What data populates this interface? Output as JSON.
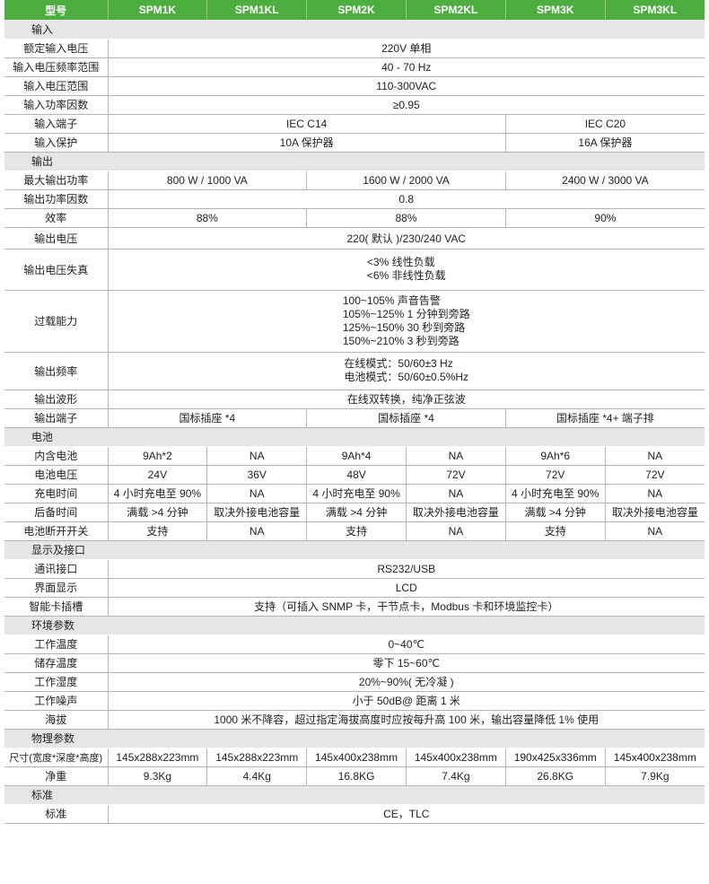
{
  "header": {
    "label": "型号",
    "models": [
      "SPM1K",
      "SPM1KL",
      "SPM2K",
      "SPM2KL",
      "SPM3K",
      "SPM3KL"
    ]
  },
  "accent_color": "#4cae3f",
  "rows": [
    {
      "section": "输入"
    },
    {
      "label": "额定输入电压",
      "cells": [
        {
          "t": "220V 单相",
          "s": 6
        }
      ]
    },
    {
      "label": "输入电压频率范围",
      "cells": [
        {
          "t": "40 - 70 Hz",
          "s": 6
        }
      ]
    },
    {
      "label": "输入电压范围",
      "cells": [
        {
          "t": "110-300VAC",
          "s": 6
        }
      ]
    },
    {
      "label": "输入功率因数",
      "cells": [
        {
          "t": "≥0.95",
          "s": 6
        }
      ]
    },
    {
      "label": "输入端子",
      "cells": [
        {
          "t": "IEC C14",
          "s": 4
        },
        {
          "t": "IEC C20",
          "s": 2
        }
      ]
    },
    {
      "label": "输入保护",
      "cells": [
        {
          "t": "10A 保护器",
          "s": 4
        },
        {
          "t": "16A 保护器",
          "s": 2
        }
      ]
    },
    {
      "section": "输出"
    },
    {
      "label": "最大输出功率",
      "cells": [
        {
          "t": "800 W / 1000 VA",
          "s": 2
        },
        {
          "t": "1600 W / 2000 VA",
          "s": 2
        },
        {
          "t": "2400 W / 3000 VA",
          "s": 2
        }
      ]
    },
    {
      "label": "输出功率因数",
      "cells": [
        {
          "t": "0.8",
          "s": 6
        }
      ]
    },
    {
      "label": "效率",
      "cells": [
        {
          "t": "88%",
          "s": 2
        },
        {
          "t": "88%",
          "s": 2
        },
        {
          "t": "90%",
          "s": 2
        }
      ]
    },
    {
      "label": "输出电压",
      "h": 24,
      "cells": [
        {
          "t": "220( 默认 )/230/240 VAC",
          "s": 6
        }
      ]
    },
    {
      "label": "输出电压失真",
      "h": 46,
      "cells": [
        {
          "t": "<3%  线性负载\n<6%  非线性负载",
          "s": 6,
          "ml": true
        }
      ]
    },
    {
      "label": "过载能力",
      "h": 69,
      "cells": [
        {
          "t": "100~105% 声音告警\n105%~125% 1 分钟到旁路\n125%~150% 30 秒到旁路\n150%~210% 3 秒到旁路",
          "s": 6,
          "ml": true
        }
      ]
    },
    {
      "label": "输出频率",
      "h": 42,
      "cells": [
        {
          "t": "在线模式：50/60±3 Hz\n电池模式：50/60±0.5%Hz",
          "s": 6,
          "ml": true
        }
      ]
    },
    {
      "label": "输出波形",
      "cells": [
        {
          "t": "在线双转换，纯净正弦波",
          "s": 6
        }
      ]
    },
    {
      "label": "输出端子",
      "cells": [
        {
          "t": "国标插座 *4",
          "s": 2
        },
        {
          "t": "国标插座 *4",
          "s": 2
        },
        {
          "t": "国标插座 *4+ 端子排",
          "s": 2
        }
      ]
    },
    {
      "section": "电池"
    },
    {
      "label": "内含电池",
      "cells": [
        {
          "t": "9Ah*2"
        },
        {
          "t": "NA"
        },
        {
          "t": "9Ah*4"
        },
        {
          "t": "NA"
        },
        {
          "t": "9Ah*6"
        },
        {
          "t": "NA"
        }
      ]
    },
    {
      "label": "电池电压",
      "cells": [
        {
          "t": "24V"
        },
        {
          "t": "36V"
        },
        {
          "t": "48V"
        },
        {
          "t": "72V"
        },
        {
          "t": "72V"
        },
        {
          "t": "72V"
        }
      ]
    },
    {
      "label": "充电时间",
      "cells": [
        {
          "t": "4 小时充电至 90%"
        },
        {
          "t": "NA"
        },
        {
          "t": "4 小时充电至 90%"
        },
        {
          "t": "NA"
        },
        {
          "t": "4 小时充电至 90%"
        },
        {
          "t": "NA"
        }
      ]
    },
    {
      "label": "后备时间",
      "cells": [
        {
          "t": "满载 >4 分钟"
        },
        {
          "t": "取决外接电池容量"
        },
        {
          "t": "满载 >4 分钟"
        },
        {
          "t": "取决外接电池容量"
        },
        {
          "t": "满载 >4 分钟"
        },
        {
          "t": "取决外接电池容量"
        }
      ]
    },
    {
      "label": "电池断开开关",
      "cells": [
        {
          "t": "支持"
        },
        {
          "t": "NA"
        },
        {
          "t": "支持"
        },
        {
          "t": "NA"
        },
        {
          "t": "支持"
        },
        {
          "t": "NA"
        }
      ]
    },
    {
      "section": "显示及接口"
    },
    {
      "label": "通讯接口",
      "cells": [
        {
          "t": "RS232/USB",
          "s": 6
        }
      ]
    },
    {
      "label": "界面显示",
      "cells": [
        {
          "t": "LCD",
          "s": 6
        }
      ]
    },
    {
      "label": "智能卡插槽",
      "cells": [
        {
          "t": "支持（可插入 SNMP 卡，干节点卡，Modbus 卡和环境监控卡）",
          "s": 6
        }
      ]
    },
    {
      "section": "环境参数"
    },
    {
      "label": "工作温度",
      "cells": [
        {
          "t": "0~40℃",
          "s": 6
        }
      ]
    },
    {
      "label": "储存温度",
      "cells": [
        {
          "t": "零下 15~60℃",
          "s": 6
        }
      ]
    },
    {
      "label": "工作湿度",
      "cells": [
        {
          "t": "20%~90%( 无冷凝 )",
          "s": 6
        }
      ]
    },
    {
      "label": "工作噪声",
      "cells": [
        {
          "t": "小于 50dB@ 距离 1 米",
          "s": 6
        }
      ]
    },
    {
      "label": "海拔",
      "cells": [
        {
          "t": "1000 米不降容，超过指定海拔高度时应按每升高 100 米，输出容量降低 1% 使用",
          "s": 6
        }
      ]
    },
    {
      "section": "物理参数"
    },
    {
      "label": "尺寸(宽度*深度*高度)",
      "cells": [
        {
          "t": "145x288x223mm"
        },
        {
          "t": "145x288x223mm"
        },
        {
          "t": "145x400x238mm"
        },
        {
          "t": "145x400x238mm"
        },
        {
          "t": "190x425x336mm"
        },
        {
          "t": "145x400x238mm"
        }
      ]
    },
    {
      "label": "净重",
      "cells": [
        {
          "t": "9.3Kg"
        },
        {
          "t": "4.4Kg"
        },
        {
          "t": "16.8KG"
        },
        {
          "t": "7.4Kg"
        },
        {
          "t": "26.8KG"
        },
        {
          "t": "7.9Kg"
        }
      ]
    },
    {
      "section": "标准"
    },
    {
      "label": "标准",
      "cells": [
        {
          "t": "CE，TLC",
          "s": 6
        }
      ]
    }
  ]
}
